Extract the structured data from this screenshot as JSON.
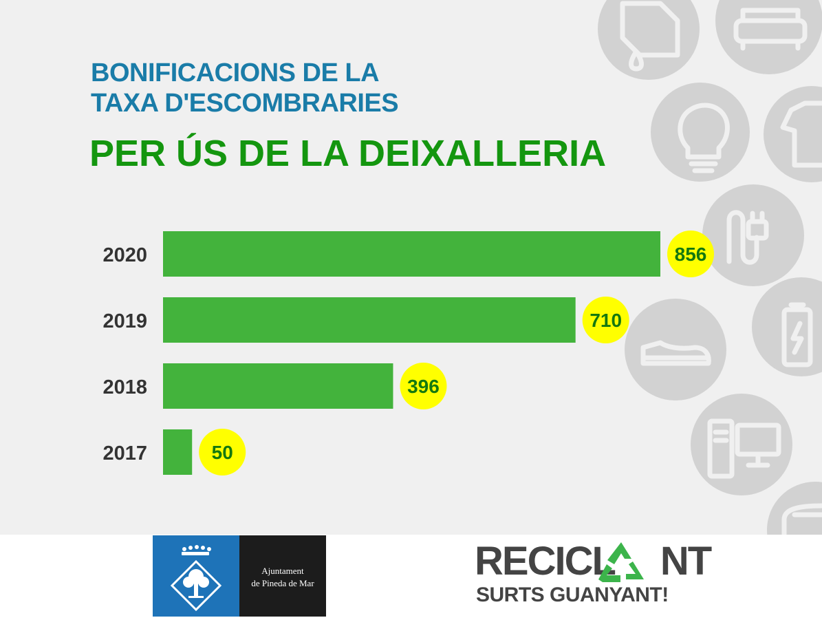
{
  "header": {
    "title_line1": "BONIFICACIONS DE LA",
    "title_line2": "TAXA D'ESCOMBRARIES",
    "subtitle": "PER ÚS DE LA DEIXALLERIA"
  },
  "chart_data": {
    "type": "bar",
    "orientation": "horizontal",
    "categories": [
      "2020",
      "2019",
      "2018",
      "2017"
    ],
    "values": [
      856,
      710,
      396,
      50
    ],
    "data_labels": [
      "856",
      "710",
      "396",
      "50"
    ],
    "title": "BONIFICACIONS DE LA TAXA D'ESCOMBRARIES PER ÚS DE LA DEIXALLERIA",
    "xlabel": "",
    "ylabel": "",
    "xlim": [
      0,
      856
    ],
    "grid": false,
    "legend": "none",
    "bar_color": "#43b33c",
    "label_bubble_color": "#ffff00",
    "label_text_color": "#14780f"
  },
  "decoration": {
    "icons": [
      "paint-can-icon",
      "sofa-icon",
      "lightbulb-icon",
      "tshirt-icon",
      "cable-plug-icon",
      "battery-icon",
      "shoe-icon",
      "computer-icon",
      "toaster-icon"
    ],
    "circle_color": "#d2d2d2",
    "icon_color": "#f0f0f0"
  },
  "footer": {
    "municipality_line1": "Ajuntament",
    "municipality_line2": "de Pineda de Mar",
    "campaign_word_a": "RECICL",
    "campaign_word_b": "NT",
    "campaign_tagline": "SURTS GUANYANT!",
    "brand_blue": "#1e73b8",
    "recycle_green": "#3cb44b"
  }
}
